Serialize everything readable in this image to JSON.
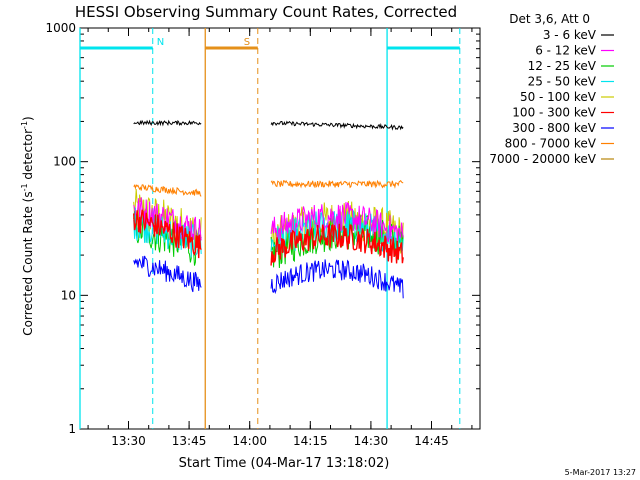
{
  "chart_data": {
    "type": "line",
    "title": "HESSI Observing Summary Count Rates, Corrected",
    "xlabel": "Start Time (04-Mar-17 13:18:02)",
    "ylabel_main": "Corrected Count Rate (s",
    "ylabel_sup1": "-1",
    "ylabel_mid": " detector",
    "ylabel_sup2": "-1",
    "ylabel_end": ")",
    "y_scale": "log",
    "ylim": [
      1,
      1000
    ],
    "xlim": [
      "13:18",
      "14:57"
    ],
    "x_ticks": [
      "13:30",
      "13:45",
      "14:00",
      "14:15",
      "14:30",
      "14:45"
    ],
    "y_ticks": [
      "1",
      "10",
      "100",
      "1000"
    ],
    "legend_title": "Det 3,6, Att 0",
    "footer_date": "5-Mar-2017 13:27",
    "flags": [
      {
        "label": "N",
        "color": "#00e5ee",
        "bar": [
          [
            "13:18",
            "13:36"
          ],
          [
            "14:34",
            "14:52"
          ]
        ],
        "lines_solid": [
          "13:18",
          "14:34"
        ],
        "lines_dashed": [
          "13:36",
          "14:52"
        ]
      },
      {
        "label": "S",
        "color": "#e5901a",
        "bar": [
          [
            "13:49",
            "14:02"
          ]
        ],
        "lines_solid": [
          "13:49"
        ],
        "lines_dashed": [
          "14:02"
        ]
      }
    ],
    "segments": [
      [
        "13:31",
        "13:48"
      ],
      [
        "14:05",
        "14:38"
      ]
    ],
    "series": [
      {
        "name": "3 - 6 keV",
        "color": "#000000",
        "values": [
          [
            195,
            195
          ],
          [
            195,
            180
          ]
        ]
      },
      {
        "name": "6 - 12 keV",
        "color": "#ff00ff",
        "values": [
          [
            45,
            30
          ],
          [
            30,
            28
          ]
        ]
      },
      {
        "name": "12 - 25 keV",
        "color": "#00cc00",
        "values": [
          [
            32,
            22
          ],
          [
            20,
            24
          ]
        ]
      },
      {
        "name": "25 - 50 keV",
        "color": "#00e5ee",
        "values": [
          [
            35,
            24
          ],
          [
            24,
            25
          ]
        ]
      },
      {
        "name": "50 - 100 keV",
        "color": "#cccc00",
        "values": [
          [
            45,
            28
          ],
          [
            26,
            28
          ]
        ]
      },
      {
        "name": "100 - 300 keV",
        "color": "#ff0000",
        "values": [
          [
            38,
            23
          ],
          [
            21,
            20
          ]
        ]
      },
      {
        "name": "300 - 800 keV",
        "color": "#0000ff",
        "values": [
          [
            18,
            12
          ],
          [
            12,
            11
          ]
        ]
      },
      {
        "name": "800 - 7000 keV",
        "color": "#ff8000",
        "values": [
          [
            65,
            58
          ],
          [
            68,
            68
          ]
        ]
      },
      {
        "name": "7000 - 20000 keV",
        "color": "#b8860b",
        "values": [
          [
            null,
            null
          ],
          [
            null,
            null
          ]
        ]
      }
    ]
  }
}
